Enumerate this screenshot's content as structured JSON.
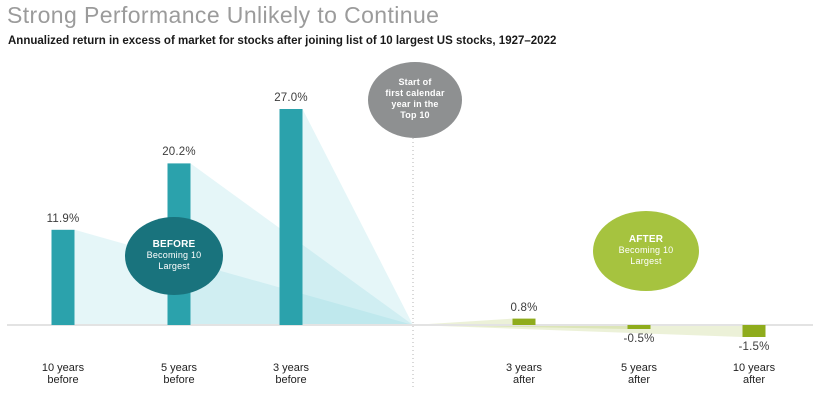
{
  "header": {
    "title": "Strong Performance Unlikely to Continue",
    "subtitle": "Annualized return in excess of market for stocks after joining list of 10 largest US stocks, 1927–2022"
  },
  "colors": {
    "before_bar": "#2BA2AC",
    "before_bubble": "#19737D",
    "before_fade": "rgba(125,208,222,0.20)",
    "after_bar": "#8FAC1C",
    "after_bubble": "#A6C33F",
    "after_fade": "rgba(150,175,40,0.18)",
    "start_bubble": "#8E9091",
    "baseline": "#E3E3E3",
    "dotted_line": "#B3B3B3",
    "title_text": "#9b9b9b"
  },
  "annotations": {
    "start": {
      "line1": "Start of",
      "line2": "first calendar",
      "line3": "year in the",
      "line4": "Top 10"
    },
    "before": {
      "title": "BEFORE",
      "line2": "Becoming 10",
      "line3": "Largest"
    },
    "after": {
      "title": "AFTER",
      "line2": "Becoming 10",
      "line3": "Largest"
    }
  },
  "chart_data": {
    "type": "bar",
    "title": "Strong Performance Unlikely to Continue",
    "subtitle": "Annualized return in excess of market for stocks after joining list of 10 largest US stocks, 1927–2022",
    "categories": [
      "10 years before",
      "5 years before",
      "3 years before",
      "3 years after",
      "5 years after",
      "10 years after"
    ],
    "values": [
      11.9,
      20.2,
      27.0,
      0.8,
      -0.5,
      -1.5
    ],
    "labels": [
      "11.9%",
      "20.2%",
      "27.0%",
      "0.8%",
      "-0.5%",
      "-1.5%"
    ],
    "groups": [
      "before",
      "before",
      "before",
      "after",
      "after",
      "after"
    ],
    "unit": "%",
    "ylim": [
      -2,
      30
    ],
    "grid": false,
    "legend": "none",
    "annotation_divider": "Start of first calendar year in the Top 10"
  }
}
